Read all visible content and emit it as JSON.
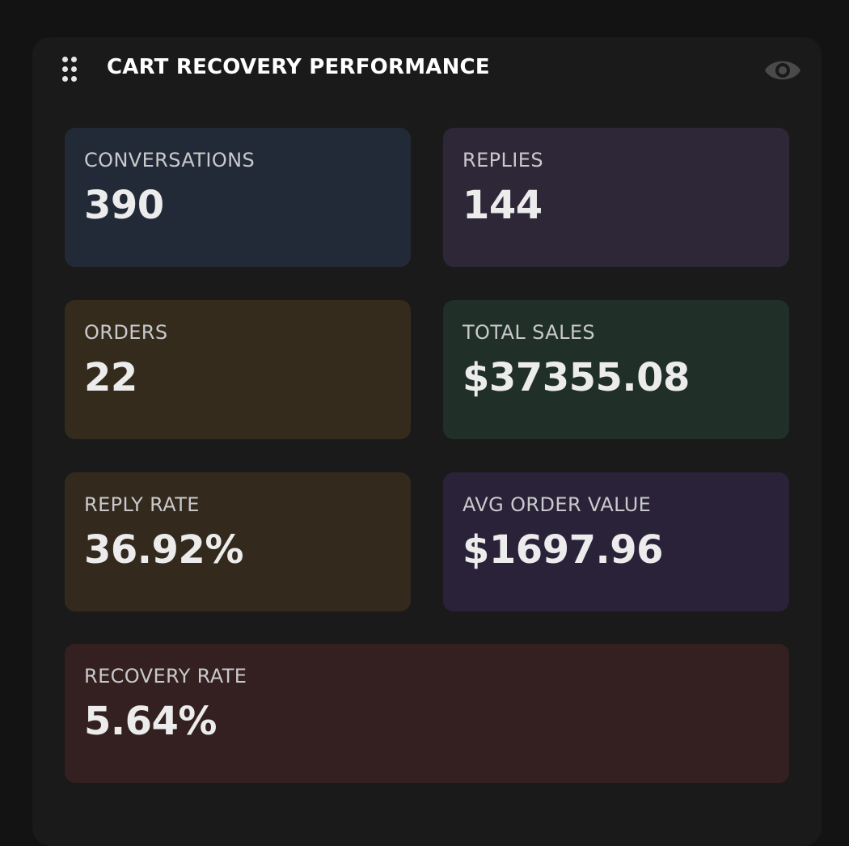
{
  "header": {
    "title": "CART RECOVERY PERFORMANCE",
    "drag_icon": "drag-handle-icon",
    "visibility_icon": "eye-icon"
  },
  "metrics": {
    "conversations": {
      "label": "CONVERSATIONS",
      "value": "390",
      "bg": "#212a36"
    },
    "replies": {
      "label": "REPLIES",
      "value": "144",
      "bg": "#2d2738"
    },
    "orders": {
      "label": "ORDERS",
      "value": "22",
      "bg": "#352b1d"
    },
    "total_sales": {
      "label": "TOTAL SALES",
      "value": "$37355.08",
      "bg": "#202f28"
    },
    "reply_rate": {
      "label": "REPLY RATE",
      "value": "36.92%",
      "bg": "#33291d"
    },
    "avg_order_value": {
      "label": "AVG ORDER VALUE",
      "value": "$1697.96",
      "bg": "#2a2238"
    },
    "recovery_rate": {
      "label": "RECOVERY RATE",
      "value": "5.64%",
      "bg": "#342020"
    }
  },
  "colors": {
    "page_bg": "#131313",
    "panel_bg": "#1a1a1a",
    "label_text": "#c9c9cc",
    "value_text": "#ececec",
    "icon_muted": "#4a4a4a"
  }
}
